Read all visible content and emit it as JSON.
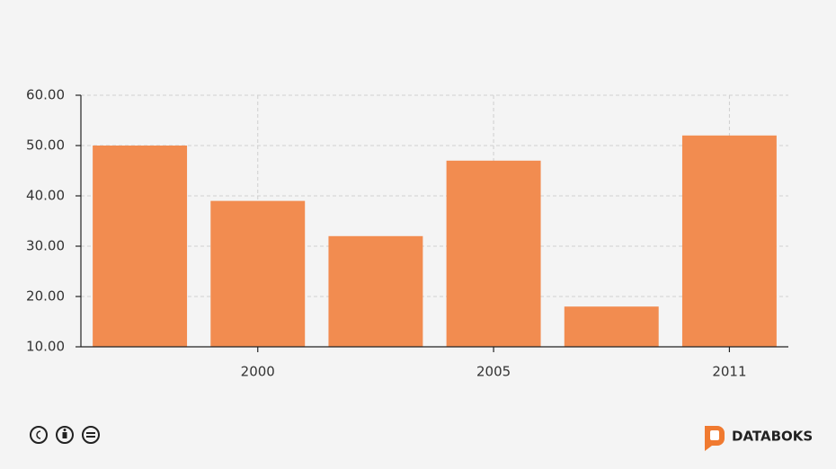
{
  "chart_data": {
    "type": "bar",
    "categories": [
      null,
      "2000",
      null,
      "2005",
      null,
      "2011"
    ],
    "values": [
      50,
      39,
      32,
      47,
      18,
      52
    ],
    "color": "#f28c50",
    "ylim": [
      10,
      60
    ],
    "yticks": [
      {
        "value": 10,
        "label": "10.00"
      },
      {
        "value": 20,
        "label": "20.00"
      },
      {
        "value": 30,
        "label": "30.00"
      },
      {
        "value": 40,
        "label": "40.00"
      },
      {
        "value": 50,
        "label": "50.00"
      },
      {
        "value": 60,
        "label": "60.00"
      }
    ],
    "grid": true
  },
  "footer": {
    "brand": "DATABOKS"
  }
}
